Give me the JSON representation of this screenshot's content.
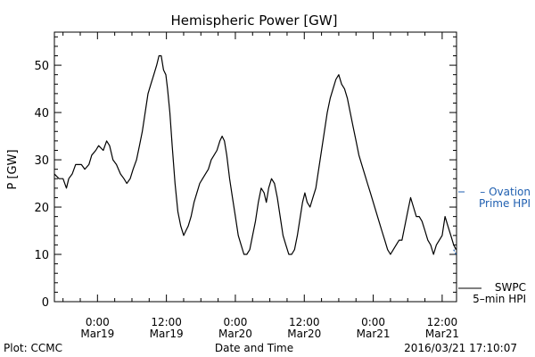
{
  "chart_data": {
    "type": "line",
    "title": "Hemispheric Power [GW]",
    "ylabel": "P [GW]",
    "xlabel": "Date and Time",
    "ylim": [
      0,
      57
    ],
    "yticks": [
      0,
      10,
      20,
      30,
      40,
      50
    ],
    "xlim_hours": [
      -7.5,
      62.5
    ],
    "xticks": [
      {
        "hour": 0,
        "line1": "0:00",
        "line2": "Mar19"
      },
      {
        "hour": 12,
        "line1": "12:00",
        "line2": "Mar19"
      },
      {
        "hour": 24,
        "line1": "0:00",
        "line2": "Mar20"
      },
      {
        "hour": 36,
        "line1": "12:00",
        "line2": "Mar20"
      },
      {
        "hour": 48,
        "line1": "0:00",
        "line2": "Mar21"
      },
      {
        "hour": 60,
        "line1": "12:00",
        "line2": "Mar21"
      }
    ],
    "series": [
      {
        "name": "SWPC 5-min HPI",
        "color": "#000000",
        "points": [
          [
            -7.5,
            27
          ],
          [
            -6.7,
            26
          ],
          [
            -6.0,
            26
          ],
          [
            -5.4,
            24
          ],
          [
            -5.0,
            26
          ],
          [
            -4.4,
            27
          ],
          [
            -3.8,
            29
          ],
          [
            -2.8,
            29
          ],
          [
            -2.2,
            28
          ],
          [
            -1.5,
            29
          ],
          [
            -1.0,
            31
          ],
          [
            -0.3,
            32
          ],
          [
            0.2,
            33
          ],
          [
            1.0,
            32
          ],
          [
            1.6,
            34
          ],
          [
            2.1,
            33
          ],
          [
            2.7,
            30
          ],
          [
            3.3,
            29
          ],
          [
            4.0,
            27
          ],
          [
            4.6,
            26
          ],
          [
            5.1,
            25
          ],
          [
            5.7,
            26
          ],
          [
            6.2,
            28
          ],
          [
            6.8,
            30
          ],
          [
            7.3,
            33
          ],
          [
            7.8,
            36
          ],
          [
            8.3,
            40
          ],
          [
            8.8,
            44
          ],
          [
            9.3,
            46
          ],
          [
            9.8,
            48
          ],
          [
            10.3,
            50
          ],
          [
            10.7,
            52
          ],
          [
            11.1,
            52
          ],
          [
            11.5,
            49
          ],
          [
            11.9,
            48
          ],
          [
            12.2,
            45
          ],
          [
            12.6,
            40
          ],
          [
            13.0,
            33
          ],
          [
            13.5,
            25
          ],
          [
            14.0,
            19
          ],
          [
            14.5,
            16
          ],
          [
            15.0,
            14
          ],
          [
            15.4,
            15
          ],
          [
            15.8,
            16
          ],
          [
            16.3,
            18
          ],
          [
            16.8,
            21
          ],
          [
            17.3,
            23
          ],
          [
            17.8,
            25
          ],
          [
            18.3,
            26
          ],
          [
            18.8,
            27
          ],
          [
            19.3,
            28
          ],
          [
            19.8,
            30
          ],
          [
            20.3,
            31
          ],
          [
            20.8,
            32
          ],
          [
            21.3,
            34
          ],
          [
            21.7,
            35
          ],
          [
            22.1,
            34
          ],
          [
            22.5,
            31
          ],
          [
            23.0,
            26
          ],
          [
            23.5,
            22
          ],
          [
            24.0,
            18
          ],
          [
            24.5,
            14
          ],
          [
            25.0,
            12
          ],
          [
            25.5,
            10
          ],
          [
            26.0,
            10
          ],
          [
            26.5,
            11
          ],
          [
            27.0,
            14
          ],
          [
            27.5,
            17
          ],
          [
            28.0,
            21
          ],
          [
            28.5,
            24
          ],
          [
            29.0,
            23
          ],
          [
            29.4,
            21
          ],
          [
            29.8,
            24
          ],
          [
            30.3,
            26
          ],
          [
            30.8,
            25
          ],
          [
            31.3,
            22
          ],
          [
            31.8,
            18
          ],
          [
            32.3,
            14
          ],
          [
            32.8,
            12
          ],
          [
            33.3,
            10
          ],
          [
            33.8,
            10
          ],
          [
            34.3,
            11
          ],
          [
            34.8,
            14
          ],
          [
            35.3,
            18
          ],
          [
            35.7,
            21
          ],
          [
            36.1,
            23
          ],
          [
            36.5,
            21
          ],
          [
            37.0,
            20
          ],
          [
            37.5,
            22
          ],
          [
            38.0,
            24
          ],
          [
            38.5,
            28
          ],
          [
            39.0,
            32
          ],
          [
            39.5,
            36
          ],
          [
            40.0,
            40
          ],
          [
            40.5,
            43
          ],
          [
            41.0,
            45
          ],
          [
            41.5,
            47
          ],
          [
            42.0,
            48
          ],
          [
            42.5,
            46
          ],
          [
            43.0,
            45
          ],
          [
            43.5,
            43
          ],
          [
            44.0,
            40
          ],
          [
            44.5,
            37
          ],
          [
            45.0,
            34
          ],
          [
            45.5,
            31
          ],
          [
            46.0,
            29
          ],
          [
            46.5,
            27
          ],
          [
            47.0,
            25
          ],
          [
            47.5,
            23
          ],
          [
            48.0,
            21
          ],
          [
            48.5,
            19
          ],
          [
            49.0,
            17
          ],
          [
            49.5,
            15
          ],
          [
            50.0,
            13
          ],
          [
            50.5,
            11
          ],
          [
            51.0,
            10
          ],
          [
            51.5,
            11
          ],
          [
            52.0,
            12
          ],
          [
            52.5,
            13
          ],
          [
            53.0,
            13
          ],
          [
            53.5,
            16
          ],
          [
            54.0,
            19
          ],
          [
            54.5,
            22
          ],
          [
            55.0,
            20
          ],
          [
            55.5,
            18
          ],
          [
            56.0,
            18
          ],
          [
            56.5,
            17
          ],
          [
            57.0,
            15
          ],
          [
            57.5,
            13
          ],
          [
            58.0,
            12
          ],
          [
            58.5,
            10
          ],
          [
            59.0,
            12
          ],
          [
            59.5,
            13
          ],
          [
            60.0,
            14
          ],
          [
            60.5,
            18
          ],
          [
            61.0,
            16
          ],
          [
            61.5,
            14
          ],
          [
            62.0,
            12
          ],
          [
            62.4,
            11
          ]
        ]
      },
      {
        "name": "Ovation Prime HPI",
        "color": "#1f5fb0",
        "points": [
          [
            62.0,
            11
          ],
          [
            62.4,
            10
          ]
        ]
      }
    ]
  },
  "legend": {
    "ovation_line1": "– Ovation",
    "ovation_line2": "Prime HPI",
    "swpc_line1": "SWPC",
    "swpc_line2": "5–min HPI"
  },
  "footer": {
    "left": "Plot: CCMC",
    "right": "2016/03/21 17:10:07"
  }
}
